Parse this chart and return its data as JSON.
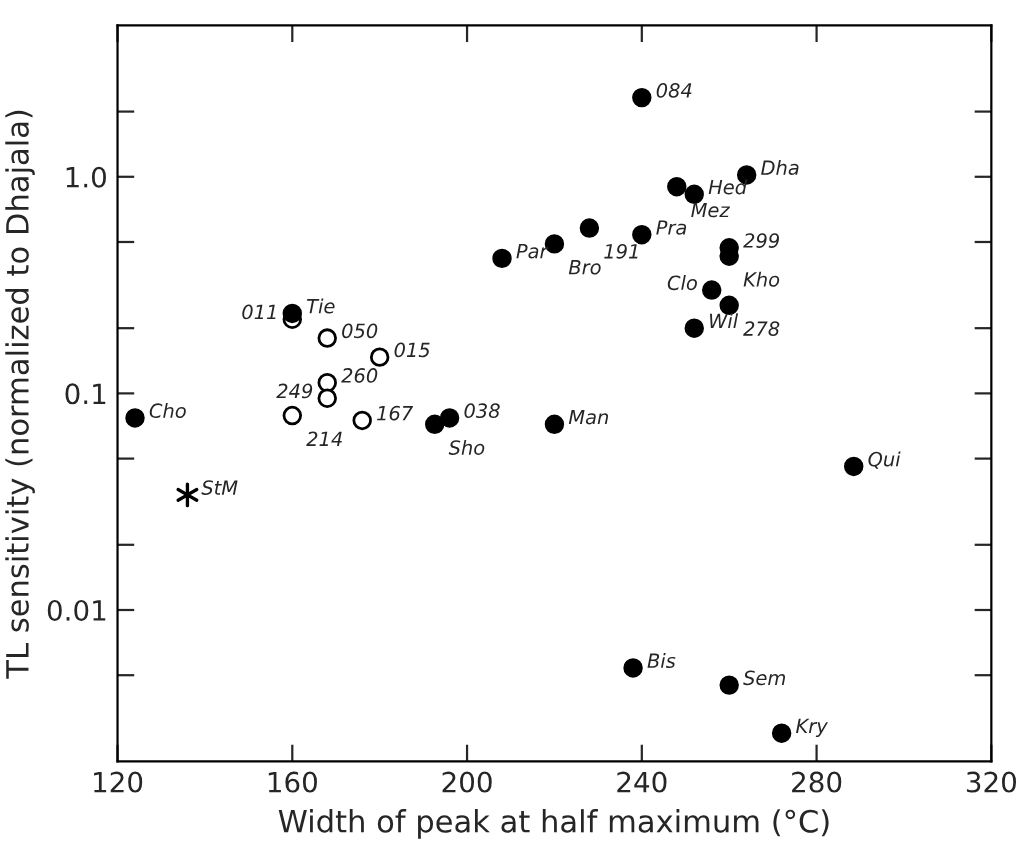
{
  "chart_data": {
    "type": "scatter",
    "xlabel": "Width of peak at half maximum (°C)",
    "ylabel": "TL sensitivity (normalized to Dhajala)",
    "log": "y",
    "xlim": [
      120,
      320
    ],
    "xticks": [
      120,
      160,
      200,
      240,
      280,
      320
    ],
    "ylim": [
      0.002,
      5
    ],
    "yticks": [
      {
        "value": 0.005,
        "label": null
      },
      {
        "value": 0.01,
        "label": "0.01"
      },
      {
        "value": 0.02,
        "label": null
      },
      {
        "value": 0.05,
        "label": null
      },
      {
        "value": 0.1,
        "label": "0.1"
      },
      {
        "value": 0.2,
        "label": null
      },
      {
        "value": 0.5,
        "label": null
      },
      {
        "value": 1,
        "label": "1.0"
      },
      {
        "value": 2,
        "label": null
      }
    ],
    "grid": false,
    "legend": false,
    "series": [
      {
        "marker": "circle",
        "color": "#000000",
        "x": [
          124,
          160,
          208,
          220,
          228,
          240,
          240,
          248,
          252,
          264,
          260,
          260,
          256,
          260,
          252,
          192.6,
          196,
          220,
          288.5,
          238,
          260,
          272
        ],
        "values": [
          0.077,
          0.234,
          0.42,
          0.49,
          0.58,
          2.32,
          0.54,
          0.9,
          0.83,
          1.02,
          0.47,
          0.43,
          0.3,
          0.255,
          0.2,
          0.072,
          0.077,
          0.072,
          0.046,
          0.0054,
          0.0045,
          0.0027
        ]
      },
      {
        "marker": "circle",
        "color": "#ffffff",
        "x": [
          160,
          168,
          180,
          168,
          168,
          160,
          176
        ],
        "values": [
          0.22,
          0.18,
          0.147,
          0.112,
          0.095,
          0.079,
          0.075
        ]
      },
      {
        "marker": "cross",
        "color": "#000000",
        "x": [
          136
        ],
        "values": [
          0.034
        ]
      }
    ],
    "annotations": [
      {
        "text": "Cho",
        "x": 124,
        "y": 0.077
      },
      {
        "text": "Tie",
        "x": 160,
        "y": 0.234
      },
      {
        "text": "Par",
        "x": 208,
        "y": 0.42
      },
      {
        "text": "Bro",
        "x": 220,
        "y": 0.49
      },
      {
        "text": "191",
        "x": 228,
        "y": 0.58
      },
      {
        "text": "084",
        "x": 240,
        "y": 2.32
      },
      {
        "text": "Pra",
        "x": 240,
        "y": 0.54
      },
      {
        "text": "Mez",
        "x": 248,
        "y": 0.9
      },
      {
        "text": "Hed",
        "x": 252,
        "y": 0.83
      },
      {
        "text": "Dha",
        "x": 264,
        "y": 1.02
      },
      {
        "text": "299",
        "x": 260,
        "y": 0.47
      },
      {
        "text": "Kho",
        "x": 260,
        "y": 0.43
      },
      {
        "text": "Clo",
        "x": 256,
        "y": 0.3
      },
      {
        "text": "278",
        "x": 260,
        "y": 0.255
      },
      {
        "text": "Wil",
        "x": 252,
        "y": 0.2
      },
      {
        "text": "Sho",
        "x": 192.6,
        "y": 0.072
      },
      {
        "text": "038",
        "x": 196,
        "y": 0.077
      },
      {
        "text": "Man",
        "x": 220,
        "y": 0.072
      },
      {
        "text": "Qui",
        "x": 288.5,
        "y": 0.046
      },
      {
        "text": "Bis",
        "x": 238,
        "y": 0.0054
      },
      {
        "text": "Sem",
        "x": 260,
        "y": 0.0045
      },
      {
        "text": "Kry",
        "x": 272,
        "y": 0.0027
      },
      {
        "text": "011",
        "x": 160,
        "y": 0.22
      },
      {
        "text": "050",
        "x": 168,
        "y": 0.18
      },
      {
        "text": "015",
        "x": 180,
        "y": 0.147
      },
      {
        "text": "260",
        "x": 168,
        "y": 0.112
      },
      {
        "text": "249",
        "x": 168,
        "y": 0.095
      },
      {
        "text": "214",
        "x": 160,
        "y": 0.079
      },
      {
        "text": "167",
        "x": 176,
        "y": 0.075
      },
      {
        "text": "StM",
        "x": 136,
        "y": 0.034
      }
    ]
  }
}
